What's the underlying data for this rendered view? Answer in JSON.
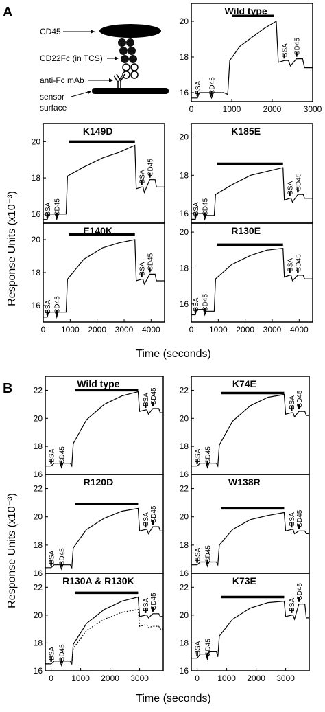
{
  "sections": {
    "A": "A",
    "B": "B"
  },
  "schematic": {
    "labels": [
      "CD45",
      "CD22Fc (in TCS)",
      "anti-Fc mAb",
      "sensor",
      "surface"
    ]
  },
  "axis_titles": {
    "A_y": "Response Units (x10⁻³)",
    "A_x": "Time (seconds)",
    "B_y": "Response Units (x10⁻³)",
    "B_x": "Time (seconds)"
  },
  "chart_data": [
    {
      "type": "line",
      "title": "Wild type",
      "xlim": [
        0,
        3000
      ],
      "ylim": [
        15.5,
        21
      ],
      "xticks": [
        0,
        1000,
        2000,
        3000
      ],
      "yticks": [
        16,
        18,
        20
      ],
      "injection_labels": [
        "BSA",
        "CD45",
        "BSA",
        "CD45"
      ],
      "series": [
        {
          "x": [
            0,
            150,
            200,
            450,
            500,
            550,
            800,
            900,
            950,
            1200,
            1500,
            1800,
            2100,
            2150,
            2300,
            2400,
            2450,
            2600,
            2750,
            2800,
            3000
          ],
          "y": [
            15.7,
            15.7,
            16.0,
            16.0,
            15.7,
            16.0,
            16.0,
            15.9,
            17.8,
            18.6,
            19.1,
            19.6,
            20.0,
            17.7,
            17.8,
            17.8,
            17.5,
            17.9,
            17.9,
            17.4,
            17.4
          ]
        }
      ],
      "bar": {
        "x": [
          1000,
          2050
        ],
        "y": 20.3
      }
    },
    {
      "type": "line",
      "title": "K149D",
      "xlim": [
        0,
        4500
      ],
      "ylim": [
        15.5,
        21
      ],
      "xticks": [],
      "yticks": [
        16,
        18,
        20
      ],
      "injection_labels": [
        "BSA",
        "CD45",
        "BSA",
        "CD45"
      ],
      "series": [
        {
          "x": [
            0,
            150,
            200,
            450,
            500,
            550,
            800,
            850,
            900,
            1500,
            2200,
            2800,
            3400,
            3450,
            3650,
            3700,
            3750,
            3950,
            4150,
            4200,
            4500
          ],
          "y": [
            15.7,
            15.7,
            16.0,
            16.0,
            15.7,
            16.0,
            16.0,
            16.0,
            18.1,
            18.6,
            19.1,
            19.4,
            19.8,
            17.4,
            17.5,
            17.5,
            17.2,
            17.9,
            17.9,
            17.5,
            17.5
          ]
        }
      ],
      "bar": {
        "x": [
          950,
          3400
        ],
        "y": 20.0
      }
    },
    {
      "type": "line",
      "title": "K185E",
      "xlim": [
        0,
        4500
      ],
      "ylim": [
        15.5,
        20.7
      ],
      "xticks": [],
      "yticks": [
        16,
        18,
        20
      ],
      "injection_labels": [
        "BSA",
        "CD45",
        "BSA",
        "CD45"
      ],
      "series": [
        {
          "x": [
            0,
            150,
            200,
            450,
            500,
            550,
            800,
            850,
            900,
            1500,
            2200,
            2800,
            3400,
            3450,
            3650,
            3700,
            3750,
            3950,
            4150,
            4200,
            4500
          ],
          "y": [
            15.7,
            15.7,
            16.0,
            16.0,
            15.7,
            15.9,
            15.9,
            15.9,
            17.0,
            17.5,
            18.0,
            18.2,
            18.4,
            16.7,
            16.8,
            16.8,
            16.6,
            17.0,
            17.0,
            16.8,
            16.8
          ]
        }
      ],
      "bar": {
        "x": [
          950,
          3400
        ],
        "y": 18.6
      }
    },
    {
      "type": "line",
      "title": "E140K",
      "xlim": [
        0,
        4500
      ],
      "ylim": [
        15,
        21
      ],
      "xticks": [
        0,
        1000,
        2000,
        3000,
        4000
      ],
      "yticks": [
        16,
        18,
        20
      ],
      "injection_labels": [
        "BSA",
        "CD45",
        "BSA",
        "CD45"
      ],
      "series": [
        {
          "x": [
            0,
            150,
            200,
            450,
            500,
            550,
            800,
            850,
            900,
            1500,
            2200,
            2800,
            3400,
            3450,
            3650,
            3700,
            3750,
            3950,
            4150,
            4200,
            4500
          ],
          "y": [
            15.3,
            15.3,
            15.6,
            15.6,
            15.3,
            15.6,
            15.6,
            15.6,
            17.6,
            18.8,
            19.5,
            19.8,
            20.0,
            17.5,
            17.6,
            17.6,
            17.3,
            17.9,
            17.9,
            17.5,
            17.5
          ]
        }
      ],
      "bar": {
        "x": [
          950,
          3400
        ],
        "y": 20.3
      }
    },
    {
      "type": "line",
      "title": "R130E",
      "xlim": [
        0,
        4500
      ],
      "ylim": [
        15,
        20.5
      ],
      "xticks": [
        0,
        1000,
        2000,
        3000,
        4000
      ],
      "yticks": [
        16,
        18,
        20
      ],
      "injection_labels": [
        "BSA",
        "CD45",
        "BSA",
        "CD45"
      ],
      "series": [
        {
          "x": [
            0,
            150,
            200,
            450,
            500,
            550,
            800,
            850,
            900,
            1500,
            2200,
            2800,
            3400,
            3450,
            3650,
            3700,
            3750,
            3950,
            4150,
            4200,
            4500
          ],
          "y": [
            15.4,
            15.4,
            15.7,
            15.7,
            15.4,
            15.6,
            15.6,
            15.6,
            17.4,
            18.2,
            18.7,
            19.0,
            19.1,
            17.5,
            17.6,
            17.6,
            17.3,
            17.6,
            17.6,
            17.4,
            17.4
          ]
        }
      ],
      "bar": {
        "x": [
          950,
          3400
        ],
        "y": 19.3
      }
    },
    {
      "type": "line",
      "title": "Wild type",
      "xlim": [
        -200,
        3800
      ],
      "ylim": [
        16,
        23
      ],
      "xticks": [],
      "yticks": [
        16,
        18,
        20,
        22
      ],
      "injection_labels": [
        "BSA",
        "CD45",
        "BSA",
        "CD45"
      ],
      "series": [
        {
          "x": [
            -200,
            0,
            100,
            300,
            350,
            400,
            650,
            700,
            750,
            1200,
            1800,
            2400,
            2950,
            3000,
            3200,
            3250,
            3300,
            3450,
            3650,
            3700,
            3800
          ],
          "y": [
            16.6,
            16.6,
            16.8,
            16.8,
            16.5,
            16.8,
            16.8,
            16.6,
            18.2,
            19.9,
            21.0,
            21.6,
            21.9,
            20.5,
            20.6,
            20.6,
            20.3,
            20.7,
            20.7,
            20.4,
            20.4
          ]
        }
      ],
      "bar": {
        "x": [
          800,
          2950
        ],
        "y": 22.0
      }
    },
    {
      "type": "line",
      "title": "K74E",
      "xlim": [
        -200,
        3800
      ],
      "ylim": [
        16,
        23
      ],
      "xticks": [],
      "yticks": [
        16,
        18,
        20,
        22
      ],
      "injection_labels": [
        "BSA",
        "CD45",
        "BSA",
        "CD45"
      ],
      "series": [
        {
          "x": [
            -200,
            0,
            100,
            300,
            350,
            400,
            650,
            700,
            750,
            1200,
            1800,
            2400,
            2950,
            3000,
            3200,
            3250,
            3300,
            3450,
            3650,
            3700,
            3800
          ],
          "y": [
            16.6,
            16.6,
            16.8,
            16.8,
            16.5,
            16.8,
            16.8,
            16.6,
            18.1,
            19.8,
            20.9,
            21.5,
            21.7,
            20.3,
            20.4,
            20.4,
            20.1,
            20.5,
            20.5,
            20.2,
            20.2
          ]
        }
      ],
      "bar": {
        "x": [
          800,
          2950
        ],
        "y": 21.8
      }
    },
    {
      "type": "line",
      "title": "R120D",
      "xlim": [
        -200,
        3800
      ],
      "ylim": [
        16,
        23
      ],
      "xticks": [],
      "yticks": [
        16,
        18,
        20,
        22
      ],
      "injection_labels": [
        "BSA",
        "CD45",
        "BSA",
        "CD45"
      ],
      "series": [
        {
          "x": [
            -200,
            0,
            100,
            300,
            350,
            400,
            650,
            700,
            750,
            1200,
            1800,
            2400,
            2950,
            3000,
            3200,
            3250,
            3300,
            3450,
            3650,
            3700,
            3800
          ],
          "y": [
            16.4,
            16.4,
            16.6,
            16.6,
            16.3,
            16.6,
            16.6,
            16.4,
            17.8,
            19.1,
            19.9,
            20.4,
            20.6,
            19.0,
            19.1,
            19.1,
            18.8,
            19.3,
            19.3,
            19.0,
            19.0
          ]
        }
      ],
      "bar": {
        "x": [
          800,
          2950
        ],
        "y": 20.9
      }
    },
    {
      "type": "line",
      "title": "W138R",
      "xlim": [
        -200,
        3800
      ],
      "ylim": [
        16,
        23
      ],
      "xticks": [],
      "yticks": [
        16,
        18,
        20,
        22
      ],
      "injection_labels": [
        "BSA",
        "CD45",
        "BSA",
        "CD45"
      ],
      "series": [
        {
          "x": [
            -200,
            0,
            100,
            300,
            350,
            400,
            650,
            700,
            750,
            1200,
            1800,
            2400,
            2950,
            3000,
            3200,
            3250,
            3300,
            3450,
            3650,
            3700,
            3800
          ],
          "y": [
            16.6,
            16.6,
            16.8,
            16.8,
            16.5,
            16.8,
            16.8,
            16.6,
            18.0,
            19.1,
            19.8,
            20.1,
            20.3,
            19.0,
            19.1,
            19.1,
            18.8,
            19.0,
            19.0,
            18.8,
            18.8
          ]
        }
      ],
      "bar": {
        "x": [
          800,
          2950
        ],
        "y": 20.6
      }
    },
    {
      "type": "line",
      "title": "R130A & R130K",
      "xlim": [
        -200,
        3800
      ],
      "ylim": [
        16,
        23
      ],
      "xticks": [
        0,
        1000,
        2000,
        3000
      ],
      "yticks": [
        16,
        18,
        20,
        22
      ],
      "injection_labels": [
        "BSA",
        "CD45",
        "BSA",
        "CD45"
      ],
      "series": [
        {
          "x": [
            -200,
            0,
            100,
            300,
            350,
            400,
            650,
            700,
            750,
            1200,
            1800,
            2400,
            2950,
            3000,
            3200,
            3250,
            3300,
            3450,
            3650,
            3700,
            3800
          ],
          "y": [
            16.5,
            16.5,
            16.7,
            16.7,
            16.4,
            16.7,
            16.7,
            16.5,
            17.9,
            19.4,
            20.4,
            21.0,
            21.3,
            19.9,
            20.0,
            20.0,
            19.8,
            20.1,
            20.1,
            19.9,
            19.9
          ]
        },
        {
          "x": [
            -200,
            0,
            100,
            300,
            350,
            400,
            650,
            700,
            750,
            1200,
            1800,
            2400,
            2950,
            3000,
            3200,
            3250,
            3300,
            3450,
            3650,
            3700,
            3800
          ],
          "y": [
            16.5,
            16.5,
            16.7,
            16.7,
            16.4,
            16.7,
            16.7,
            16.5,
            17.6,
            18.9,
            19.7,
            20.2,
            20.4,
            19.2,
            19.3,
            19.3,
            19.1,
            19.2,
            19.2,
            19.0,
            19.0
          ]
        }
      ],
      "bar": {
        "x": [
          800,
          2950
        ],
        "y": 21.6
      }
    },
    {
      "type": "line",
      "title": "K73E",
      "xlim": [
        -200,
        3800
      ],
      "ylim": [
        16,
        23
      ],
      "xticks": [
        0,
        1000,
        2000,
        3000
      ],
      "yticks": [
        16,
        18,
        20,
        22
      ],
      "injection_labels": [
        "BSA",
        "CD45",
        "BSA",
        "CD45"
      ],
      "series": [
        {
          "x": [
            -200,
            0,
            100,
            300,
            350,
            400,
            650,
            700,
            750,
            1200,
            1800,
            2400,
            2950,
            3000,
            3200,
            3250,
            3300,
            3450,
            3650,
            3700,
            3800
          ],
          "y": [
            16.9,
            16.9,
            17.2,
            17.2,
            16.8,
            17.4,
            17.4,
            17.0,
            18.5,
            19.7,
            20.5,
            20.9,
            21.0,
            19.9,
            20.0,
            20.0,
            19.7,
            20.8,
            20.8,
            19.8,
            19.8
          ]
        }
      ],
      "bar": {
        "x": [
          800,
          2950
        ],
        "y": 21.3
      }
    }
  ]
}
